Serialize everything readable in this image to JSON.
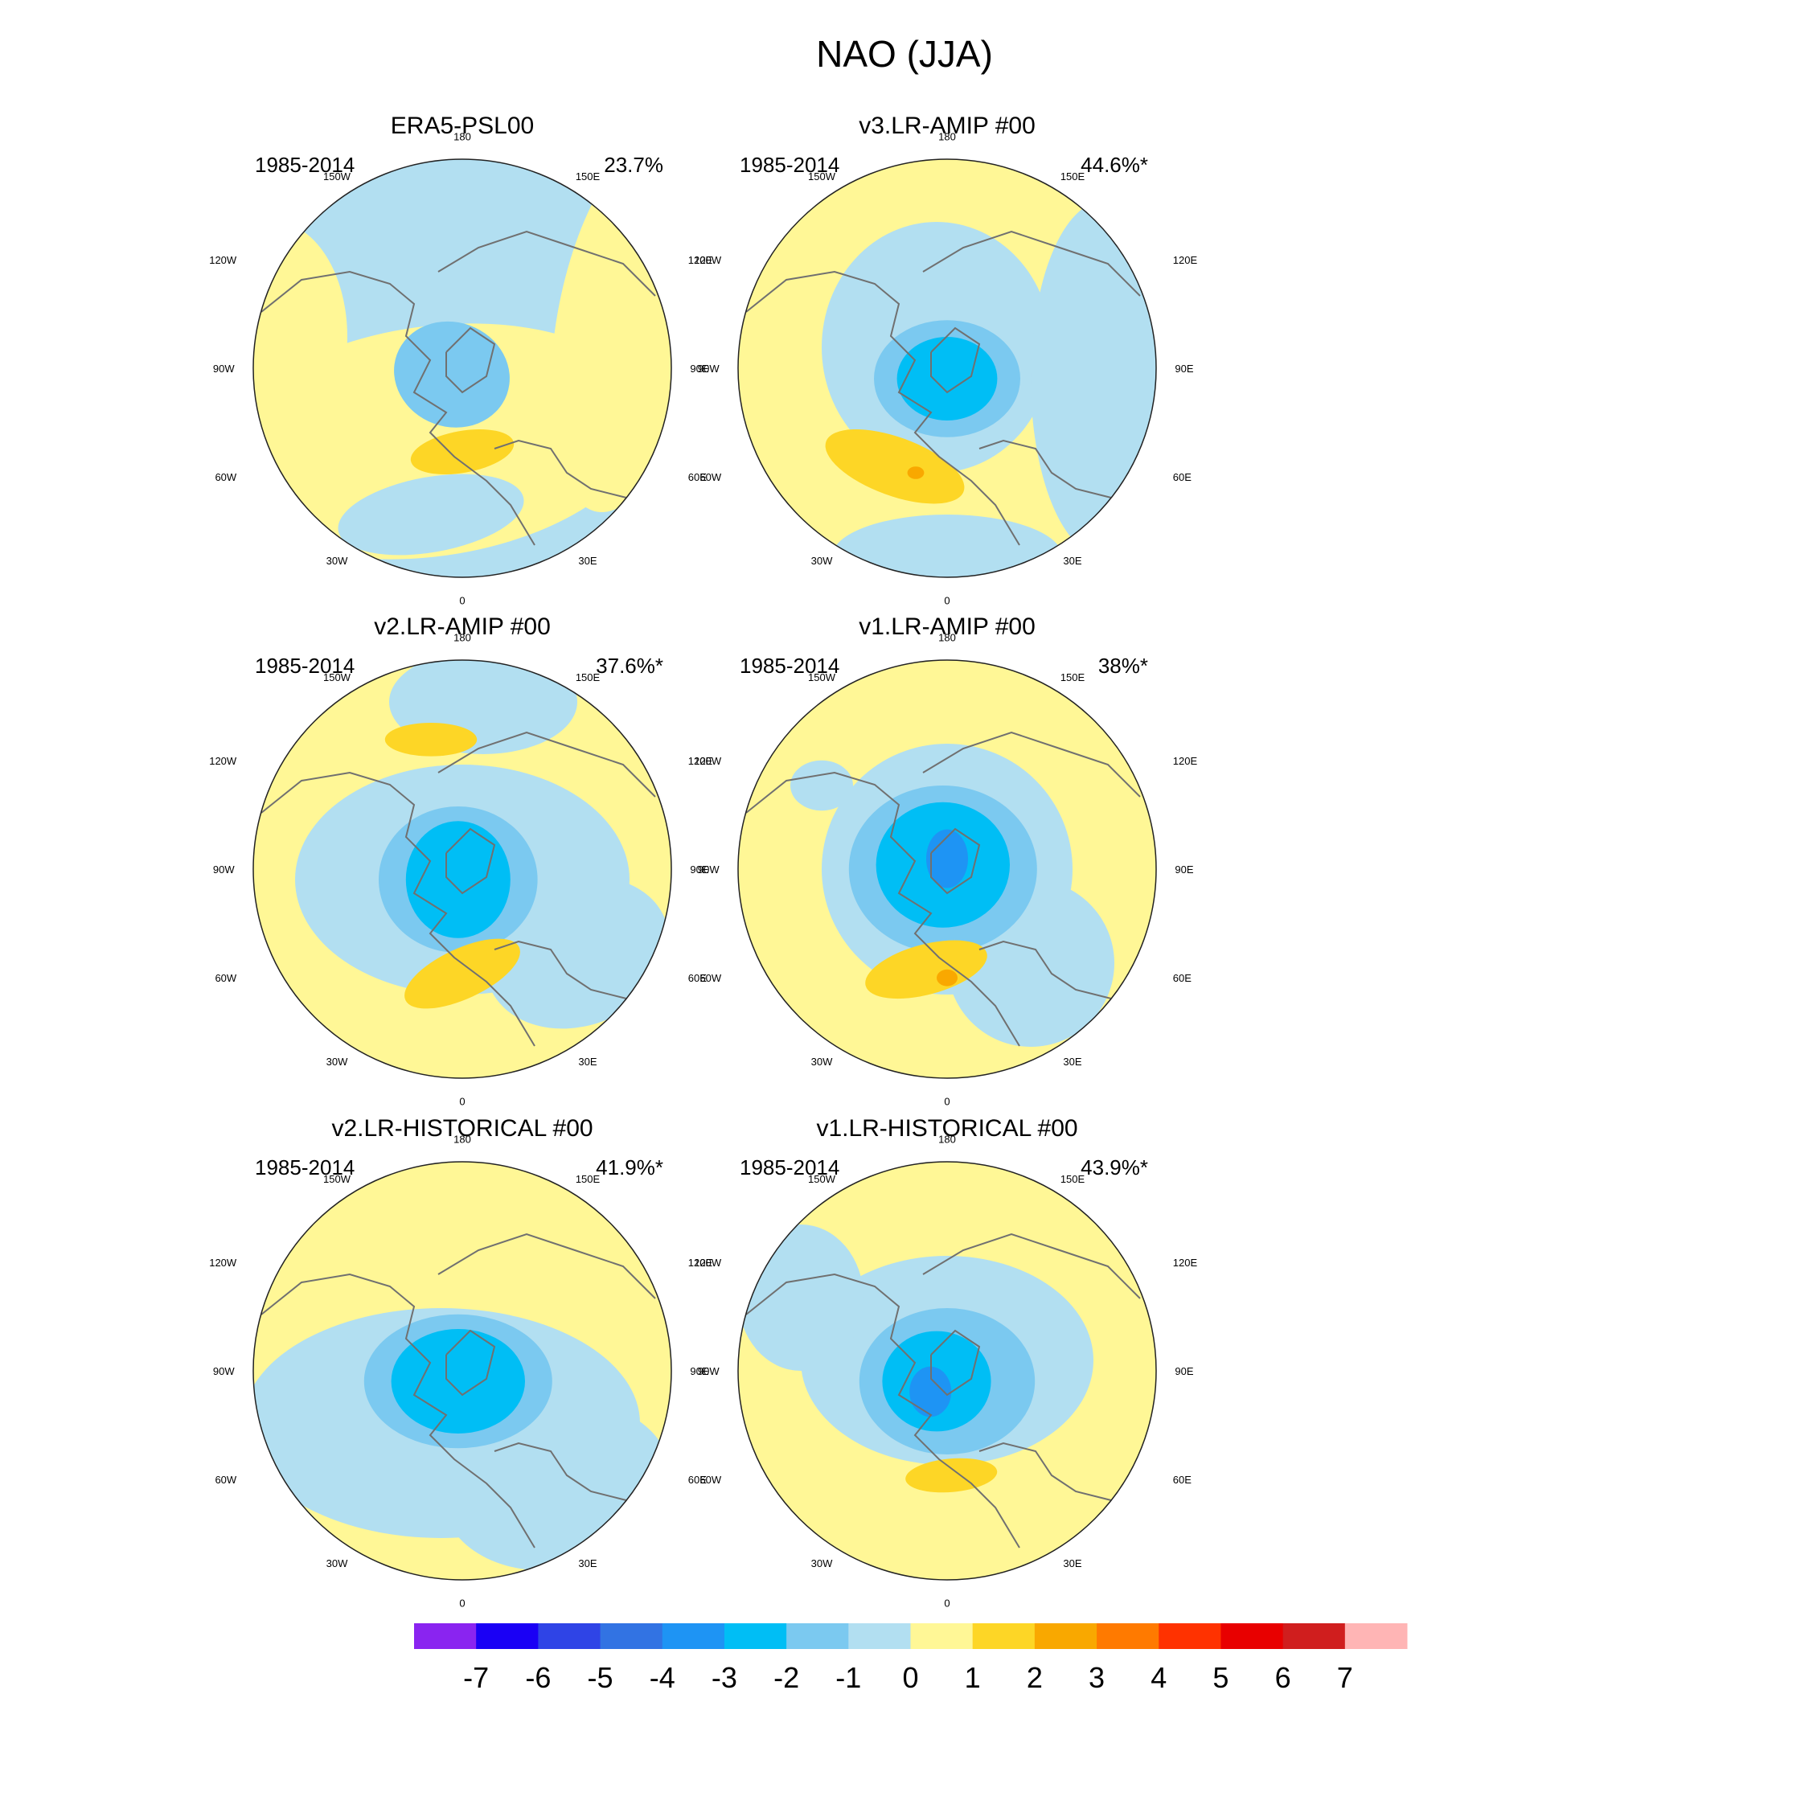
{
  "title": "NAO (JJA)",
  "chart_data": {
    "type": "polar-contour-map",
    "title": "NAO (JJA)",
    "panels": [
      {
        "name": "ERA5-PSL00",
        "period": "1985-2014",
        "variance": "23.7%"
      },
      {
        "name": "v3.LR-AMIP  #00",
        "period": "1985-2014",
        "variance": "44.6%*"
      },
      {
        "name": "v2.LR-AMIP  #00",
        "period": "1985-2014",
        "variance": "37.6%*"
      },
      {
        "name": "v1.LR-AMIP  #00",
        "period": "1985-2014",
        "variance": "38%*"
      },
      {
        "name": "v2.LR-HISTORICAL  #00",
        "period": "1985-2014",
        "variance": "41.9%*"
      },
      {
        "name": "v1.LR-HISTORICAL  #00",
        "period": "1985-2014",
        "variance": "43.9%*"
      }
    ],
    "longitude_labels": {
      "top": "180",
      "bottom": "0",
      "upper_left": "150W",
      "upper_right": "150E",
      "mid_upper_left": "120W",
      "mid_upper_right": "120E",
      "left": "90W",
      "right": "90E",
      "mid_lower_left": "60W",
      "mid_lower_right": "60E",
      "lower_left": "30W",
      "lower_right": "30E"
    },
    "colorbar": {
      "levels": [
        "-7",
        "-6",
        "-5",
        "-4",
        "-3",
        "-2",
        "-1",
        "0",
        "1",
        "2",
        "3",
        "4",
        "5",
        "6",
        "7"
      ],
      "colors": [
        "#8a24f0",
        "#1a00f5",
        "#2f44e6",
        "#3273e3",
        "#1e94f4",
        "#00bef5",
        "#7bc9f0",
        "#b2dff1",
        "#fff796",
        "#fdd626",
        "#f9a800",
        "#ff7a00",
        "#ff3200",
        "#e80000",
        "#d01e1e",
        "#ffb5b5"
      ]
    }
  }
}
